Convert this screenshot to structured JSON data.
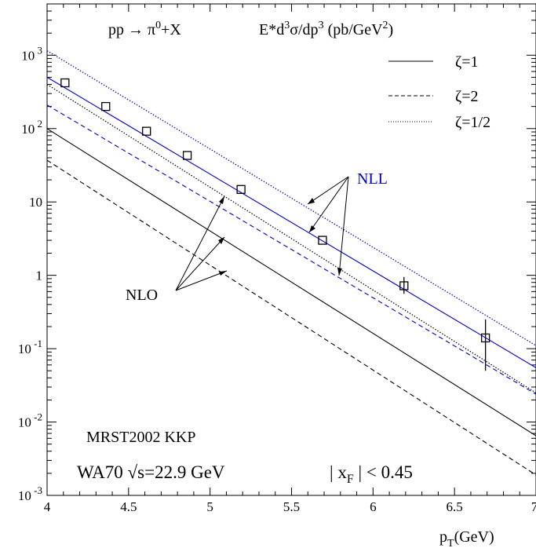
{
  "chart_data": {
    "type": "line",
    "title": "pp → π0+X     E*d3σ/dp3 (pb/GeV2)",
    "title_parts": {
      "process_left": "pp → π",
      "process_sup": "0",
      "process_right": "+X",
      "ylabel_prefix": "E*d",
      "ylabel_sup1": "3",
      "ylabel_mid": "σ/dp",
      "ylabel_sup2": "3",
      "ylabel_unit": " (pb/GeV",
      "ylabel_unit_sup": "2",
      "ylabel_close": ")"
    },
    "xlabel": "pT(GeV)",
    "xlabel_parts": {
      "main": "p",
      "sub": "T",
      "rest": "(GeV)"
    },
    "xlim": [
      4,
      7
    ],
    "ylim": [
      0.001,
      5000
    ],
    "yscale": "log",
    "x_ticks": [
      {
        "value": 4,
        "label": "4"
      },
      {
        "value": 4.5,
        "label": "4.5"
      },
      {
        "value": 5,
        "label": "5"
      },
      {
        "value": 5.5,
        "label": "5.5"
      },
      {
        "value": 6,
        "label": "6"
      },
      {
        "value": 6.5,
        "label": "6.5"
      },
      {
        "value": 7,
        "label": "7"
      }
    ],
    "y_ticks": [
      {
        "value": 1000,
        "base": "10",
        "exp": " 3"
      },
      {
        "value": 100,
        "base": "10",
        "exp": " 2"
      },
      {
        "value": 10,
        "base": "10",
        "exp": ""
      },
      {
        "value": 1,
        "base": "1",
        "exp": ""
      },
      {
        "value": 0.1,
        "base": "10",
        "exp": " -1"
      },
      {
        "value": 0.01,
        "base": "10",
        "exp": " -2"
      },
      {
        "value": 0.001,
        "base": "10",
        "exp": " -3"
      }
    ],
    "grid": false,
    "legend_position": "top-right",
    "legend": [
      {
        "label": "ζ=1",
        "style": "solid"
      },
      {
        "label": "ζ=2",
        "style": "dashed"
      },
      {
        "label": "ζ=1/2",
        "style": "dotted"
      }
    ],
    "series": [
      {
        "group": "NLL",
        "zeta": "1",
        "style": "solid",
        "color": "#0000cc",
        "x": [
          4,
          7
        ],
        "y": [
          500,
          0.055
        ]
      },
      {
        "group": "NLL",
        "zeta": "2",
        "style": "dashed",
        "color": "#0000cc",
        "x": [
          4,
          7
        ],
        "y": [
          210,
          0.024
        ]
      },
      {
        "group": "NLL",
        "zeta": "1/2",
        "style": "dotted",
        "color": "#0000cc",
        "x": [
          4,
          7
        ],
        "y": [
          1150,
          0.11
        ]
      },
      {
        "group": "NLO",
        "zeta": "1",
        "style": "solid",
        "color": "#000000",
        "x": [
          4,
          7
        ],
        "y": [
          100,
          0.0065
        ]
      },
      {
        "group": "NLO",
        "zeta": "2",
        "style": "dashed",
        "color": "#000000",
        "x": [
          4,
          7
        ],
        "y": [
          37,
          0.0019
        ]
      },
      {
        "group": "NLO",
        "zeta": "1/2",
        "style": "dotted",
        "color": "#000000",
        "x": [
          4,
          7
        ],
        "y": [
          400,
          0.025
        ]
      }
    ],
    "data_points": {
      "marker": "open-square",
      "x": [
        4.11,
        4.36,
        4.61,
        4.86,
        5.19,
        5.69,
        6.19,
        6.69
      ],
      "y": [
        420,
        200,
        92,
        43,
        14.8,
        3.0,
        0.72,
        0.14
      ],
      "y_err_low": [
        null,
        null,
        null,
        null,
        null,
        null,
        0.56,
        0.05
      ],
      "y_err_high": [
        null,
        null,
        null,
        null,
        null,
        null,
        0.95,
        0.25
      ]
    },
    "annotations": {
      "nll_label": "NLL",
      "nlo_label": "NLO",
      "model": "MRST2002   KKP",
      "experiment_prefix": "WA70 ",
      "experiment_sqrt": "√",
      "experiment_rest": "s=22.9 GeV",
      "cut_prefix": "| x",
      "cut_sub": "F",
      "cut_rest": " | < 0.45"
    },
    "colors": {
      "nll": "#0000cc",
      "nlo": "#000000"
    }
  }
}
